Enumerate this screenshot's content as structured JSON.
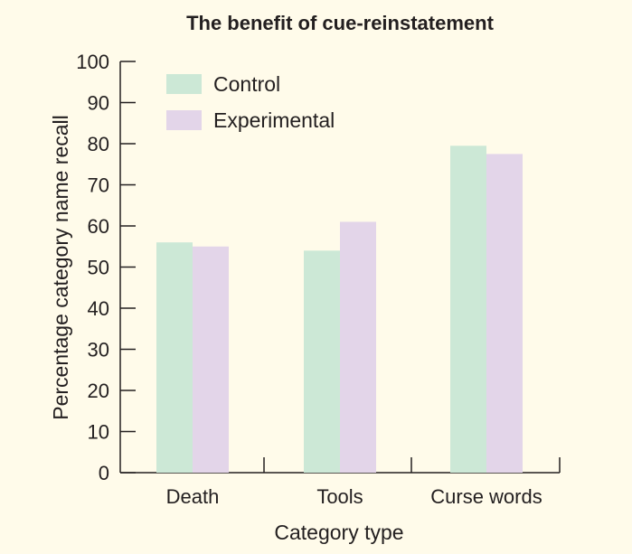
{
  "chart_data": {
    "type": "bar",
    "title": "The benefit of cue-reinstatement",
    "xlabel": "Category type",
    "ylabel": "Percentage category name recall",
    "categories": [
      "Death",
      "Tools",
      "Curse words"
    ],
    "series": [
      {
        "name": "Control",
        "values": [
          56,
          54,
          79.5
        ],
        "color": "#cce8d6"
      },
      {
        "name": "Experimental",
        "values": [
          55,
          61,
          77.5
        ],
        "color": "#e3d5e9"
      }
    ],
    "ylim": [
      0,
      100
    ],
    "yticks": [
      0,
      10,
      20,
      30,
      40,
      50,
      60,
      70,
      80,
      90,
      100
    ],
    "grid": false,
    "legend_position": "top-left"
  }
}
